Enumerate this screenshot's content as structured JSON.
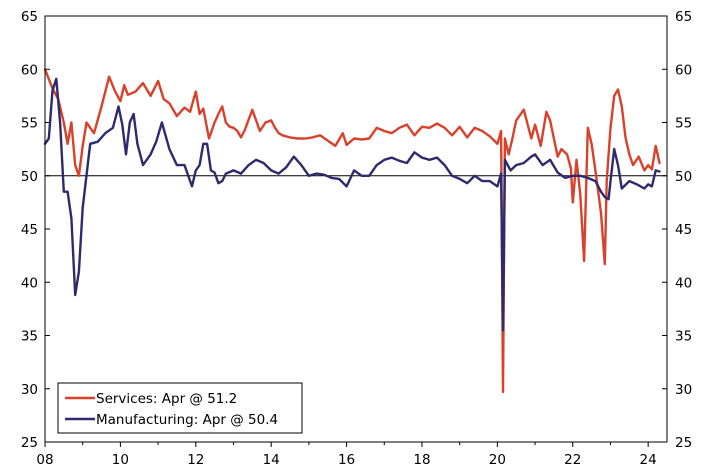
{
  "chart_data": {
    "type": "line",
    "title": "",
    "xlabel": "",
    "ylabel": "",
    "xlim": [
      2008.0,
      2024.5
    ],
    "ylim": [
      25,
      65
    ],
    "y_ticks": [
      25,
      30,
      35,
      40,
      45,
      50,
      55,
      60,
      65
    ],
    "x_ticks": [
      2008,
      2010,
      2012,
      2014,
      2016,
      2018,
      2020,
      2022,
      2024
    ],
    "x_tick_labels": [
      "08",
      "10",
      "12",
      "14",
      "16",
      "18",
      "20",
      "22",
      "24"
    ],
    "reference_line": 50,
    "grid": false,
    "legend_position": "bottom-left",
    "series": [
      {
        "name": "Services: Apr @ 51.2",
        "color": "#d9412b",
        "x": [
          2008.0,
          2008.2,
          2008.35,
          2008.5,
          2008.6,
          2008.7,
          2008.8,
          2008.9,
          2009.0,
          2009.1,
          2009.3,
          2009.5,
          2009.7,
          2009.85,
          2010.0,
          2010.1,
          2010.2,
          2010.4,
          2010.6,
          2010.8,
          2011.0,
          2011.15,
          2011.3,
          2011.5,
          2011.7,
          2011.85,
          2012.0,
          2012.1,
          2012.2,
          2012.35,
          2012.5,
          2012.6,
          2012.7,
          2012.8,
          2012.9,
          2013.0,
          2013.1,
          2013.2,
          2013.3,
          2013.5,
          2013.7,
          2013.85,
          2014.0,
          2014.1,
          2014.2,
          2014.3,
          2014.5,
          2014.7,
          2014.9,
          2015.1,
          2015.3,
          2015.5,
          2015.7,
          2015.9,
          2016.0,
          2016.2,
          2016.4,
          2016.6,
          2016.8,
          2017.0,
          2017.2,
          2017.4,
          2017.6,
          2017.8,
          2018.0,
          2018.2,
          2018.4,
          2018.6,
          2018.8,
          2019.0,
          2019.2,
          2019.4,
          2019.6,
          2019.8,
          2020.0,
          2020.1,
          2020.15,
          2020.2,
          2020.3,
          2020.4,
          2020.5,
          2020.7,
          2020.9,
          2021.0,
          2021.15,
          2021.3,
          2021.4,
          2021.5,
          2021.6,
          2021.7,
          2021.85,
          2021.95,
          2022.0,
          2022.1,
          2022.2,
          2022.3,
          2022.4,
          2022.5,
          2022.6,
          2022.75,
          2022.85,
          2022.9,
          2023.0,
          2023.1,
          2023.2,
          2023.3,
          2023.4,
          2023.5,
          2023.6,
          2023.75,
          2023.9,
          2024.0,
          2024.1,
          2024.2,
          2024.3
        ],
        "values": [
          60.0,
          58.2,
          57.2,
          55.0,
          53.0,
          55.0,
          51.0,
          50.0,
          52.8,
          55.0,
          54.0,
          56.5,
          59.3,
          58.0,
          57.0,
          58.5,
          57.6,
          57.9,
          58.7,
          57.5,
          58.9,
          57.2,
          56.8,
          55.6,
          56.4,
          56.0,
          57.9,
          55.8,
          56.3,
          53.5,
          55.0,
          55.8,
          56.5,
          55.0,
          54.6,
          54.5,
          54.2,
          53.6,
          54.3,
          56.2,
          54.2,
          55.0,
          55.2,
          54.5,
          54.0,
          53.8,
          53.6,
          53.5,
          53.5,
          53.6,
          53.8,
          53.3,
          52.8,
          54.0,
          52.9,
          53.5,
          53.4,
          53.5,
          54.5,
          54.2,
          54.0,
          54.5,
          54.8,
          53.8,
          54.6,
          54.5,
          54.9,
          54.5,
          53.8,
          54.6,
          53.6,
          54.5,
          54.2,
          53.7,
          53.0,
          54.2,
          29.7,
          53.5,
          52.0,
          53.5,
          55.2,
          56.2,
          53.5,
          54.8,
          52.8,
          56.0,
          55.2,
          53.5,
          51.8,
          52.5,
          52.0,
          50.7,
          47.5,
          51.5,
          48.2,
          42.0,
          54.5,
          53.0,
          50.5,
          46.5,
          41.7,
          49.5,
          54.5,
          57.5,
          58.1,
          56.5,
          53.6,
          52.0,
          51.0,
          51.8,
          50.5,
          51.0,
          50.6,
          52.8,
          51.2
        ]
      },
      {
        "name": "Manufacturing: Apr @ 50.4",
        "color": "#2e2a6e",
        "x": [
          2008.0,
          2008.1,
          2008.2,
          2008.3,
          2008.4,
          2008.5,
          2008.6,
          2008.7,
          2008.8,
          2008.9,
          2009.0,
          2009.2,
          2009.4,
          2009.6,
          2009.8,
          2009.95,
          2010.05,
          2010.15,
          2010.25,
          2010.35,
          2010.45,
          2010.6,
          2010.8,
          2010.95,
          2011.1,
          2011.3,
          2011.5,
          2011.7,
          2011.9,
          2012.0,
          2012.1,
          2012.2,
          2012.3,
          2012.4,
          2012.5,
          2012.6,
          2012.7,
          2012.8,
          2013.0,
          2013.2,
          2013.4,
          2013.6,
          2013.8,
          2014.0,
          2014.2,
          2014.4,
          2014.6,
          2014.8,
          2015.0,
          2015.2,
          2015.4,
          2015.6,
          2015.8,
          2016.0,
          2016.2,
          2016.4,
          2016.6,
          2016.8,
          2017.0,
          2017.2,
          2017.4,
          2017.6,
          2017.8,
          2018.0,
          2018.2,
          2018.4,
          2018.6,
          2018.8,
          2019.0,
          2019.2,
          2019.4,
          2019.6,
          2019.8,
          2020.0,
          2020.1,
          2020.15,
          2020.2,
          2020.35,
          2020.5,
          2020.7,
          2020.9,
          2021.0,
          2021.2,
          2021.4,
          2021.6,
          2021.8,
          2022.0,
          2022.2,
          2022.4,
          2022.6,
          2022.75,
          2022.85,
          2022.95,
          2023.0,
          2023.1,
          2023.2,
          2023.3,
          2023.5,
          2023.7,
          2023.9,
          2024.0,
          2024.1,
          2024.2,
          2024.3
        ],
        "values": [
          53.0,
          53.5,
          58.0,
          59.1,
          55.0,
          48.5,
          48.5,
          46.0,
          38.8,
          41.0,
          47.0,
          53.0,
          53.2,
          54.0,
          54.5,
          56.5,
          54.8,
          52.0,
          55.0,
          55.8,
          53.0,
          51.0,
          52.0,
          53.2,
          55.0,
          52.5,
          51.0,
          51.0,
          49.0,
          50.5,
          51.0,
          53.0,
          53.0,
          50.5,
          50.3,
          49.3,
          49.5,
          50.2,
          50.5,
          50.2,
          51.0,
          51.5,
          51.2,
          50.5,
          50.2,
          50.8,
          51.8,
          51.0,
          50.0,
          50.2,
          50.1,
          49.8,
          49.7,
          49.0,
          50.5,
          50.0,
          50.0,
          51.0,
          51.5,
          51.7,
          51.4,
          51.2,
          52.2,
          51.7,
          51.5,
          51.7,
          51.0,
          50.0,
          49.7,
          49.3,
          50.0,
          49.5,
          49.5,
          49.0,
          50.2,
          35.5,
          51.5,
          50.5,
          51.0,
          51.2,
          51.8,
          52.0,
          51.0,
          51.5,
          50.3,
          49.8,
          50.0,
          50.0,
          49.8,
          49.5,
          48.5,
          48.0,
          47.8,
          49.5,
          52.5,
          51.0,
          48.8,
          49.5,
          49.2,
          48.8,
          49.2,
          49.0,
          50.5,
          50.4
        ]
      }
    ]
  }
}
